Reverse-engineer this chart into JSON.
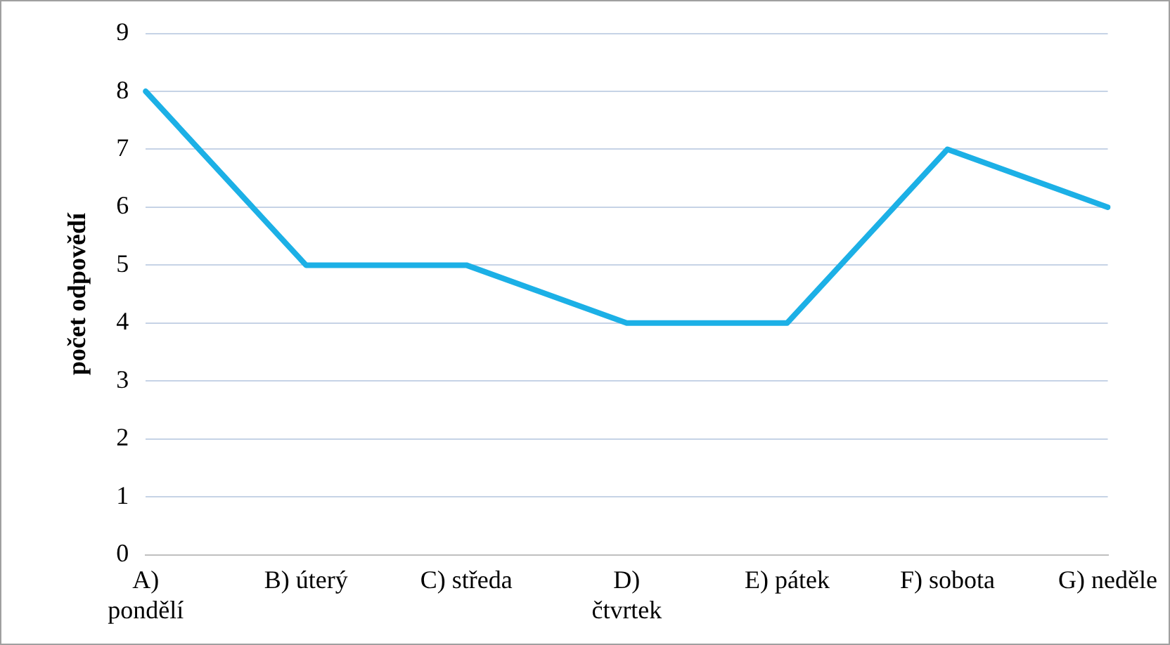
{
  "chart_data": {
    "type": "line",
    "ylabel": "počet odpovědí",
    "categories": [
      "A) pondělí",
      "B) úterý",
      "C) středa",
      "D) čtvrtek",
      "E) pátek",
      "F) sobota",
      "G) neděle"
    ],
    "series": [
      {
        "color": "#1cb0e6",
        "values": [
          8,
          5,
          5,
          4,
          4,
          7,
          6
        ]
      }
    ],
    "ylim": [
      0,
      9
    ],
    "yticks": [
      0,
      1,
      2,
      3,
      4,
      5,
      6,
      7,
      8,
      9
    ],
    "grid": "y",
    "legend": false,
    "marker": "none",
    "line_style": "solid"
  }
}
